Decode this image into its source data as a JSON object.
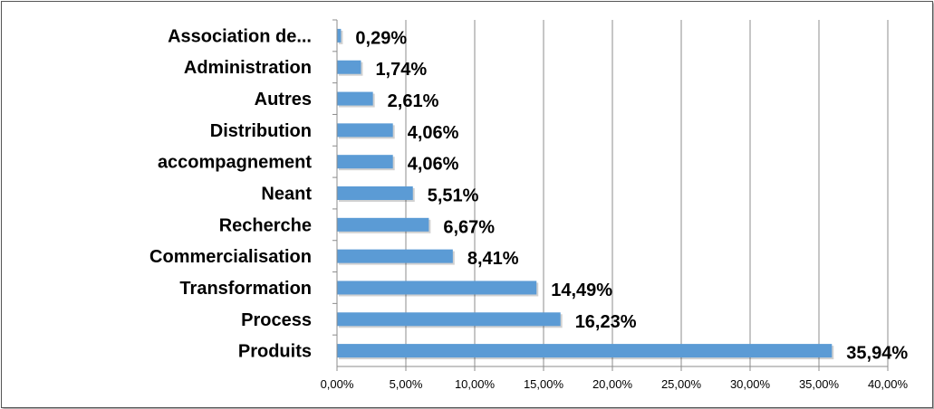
{
  "chart_data": {
    "type": "bar",
    "orientation": "horizontal",
    "categories": [
      "Association de...",
      "Administration",
      "Autres",
      "Distribution",
      "accompagnement",
      "Neant",
      "Recherche",
      "Commercialisation",
      "Transformation",
      "Process",
      "Produits"
    ],
    "values": [
      0.29,
      1.74,
      2.61,
      4.06,
      4.06,
      5.51,
      6.67,
      8.41,
      14.49,
      16.23,
      35.94
    ],
    "data_labels": [
      "0,29%",
      "1,74%",
      "2,61%",
      "4,06%",
      "4,06%",
      "5,51%",
      "6,67%",
      "8,41%",
      "14,49%",
      "16,23%",
      "35,94%"
    ],
    "x_ticks": [
      0,
      5,
      10,
      15,
      20,
      25,
      30,
      35,
      40
    ],
    "x_tick_labels": [
      "0,00%",
      "5,00%",
      "10,00%",
      "15,00%",
      "20,00%",
      "25,00%",
      "30,00%",
      "35,00%",
      "40,00%"
    ],
    "xlim": [
      0,
      40
    ],
    "title": "",
    "xlabel": "",
    "ylabel": "",
    "grid": "vertical",
    "legend": "none",
    "bar_color": "#5b9bd5",
    "gridline_color": "#8c8c8c"
  }
}
